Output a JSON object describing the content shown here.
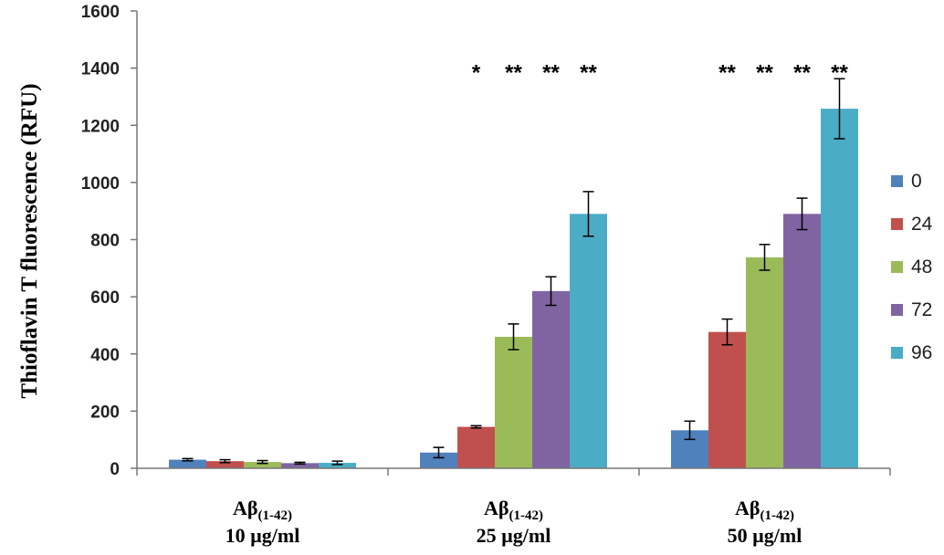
{
  "chart_data": {
    "type": "bar",
    "ylabel": "Thioflavin T fluorescence (RFU)",
    "xlabel": "",
    "ylim": [
      0,
      1600
    ],
    "yticks": [
      "0",
      "200",
      "400",
      "600",
      "800",
      "1000",
      "1200",
      "1400",
      "1600"
    ],
    "grid": false,
    "legend_position": "right",
    "categories": [
      {
        "main": "Aβ",
        "sub": "(1-42)",
        "conc": "10 µg/ml"
      },
      {
        "main": "Aβ",
        "sub": "(1-42)",
        "conc": "25 µg/ml"
      },
      {
        "main": "Aβ",
        "sub": "(1-42)",
        "conc": "50 µg/ml"
      }
    ],
    "series": [
      {
        "name": "0",
        "color": "#4F81BD",
        "values": [
          30,
          55,
          133
        ],
        "errors": [
          4,
          18,
          32
        ]
      },
      {
        "name": "24",
        "color": "#C0504D",
        "values": [
          25,
          145,
          477
        ],
        "errors": [
          5,
          4,
          45
        ]
      },
      {
        "name": "48",
        "color": "#9BBB59",
        "values": [
          22,
          460,
          738
        ],
        "errors": [
          5,
          45,
          45
        ]
      },
      {
        "name": "72",
        "color": "#8064A2",
        "values": [
          18,
          620,
          890
        ],
        "errors": [
          3,
          50,
          55
        ]
      },
      {
        "name": "96",
        "color": "#4BACC6",
        "values": [
          19,
          890,
          1258
        ],
        "errors": [
          6,
          78,
          105
        ]
      }
    ],
    "significance": [
      {
        "category": 1,
        "series": 1,
        "label": "*"
      },
      {
        "category": 1,
        "series": 2,
        "label": "**"
      },
      {
        "category": 1,
        "series": 3,
        "label": "**"
      },
      {
        "category": 1,
        "series": 4,
        "label": "**"
      },
      {
        "category": 2,
        "series": 1,
        "label": "**"
      },
      {
        "category": 2,
        "series": 2,
        "label": "**"
      },
      {
        "category": 2,
        "series": 3,
        "label": "**"
      },
      {
        "category": 2,
        "series": 4,
        "label": "**"
      }
    ],
    "significance_level": 1400
  }
}
